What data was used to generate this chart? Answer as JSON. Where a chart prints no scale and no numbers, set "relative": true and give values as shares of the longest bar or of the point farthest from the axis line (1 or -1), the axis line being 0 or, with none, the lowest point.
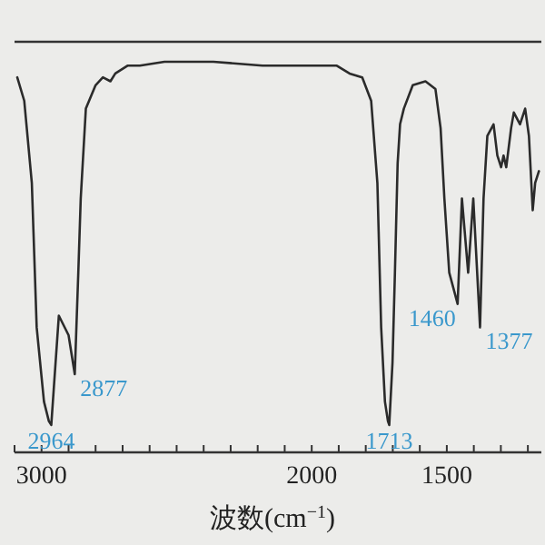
{
  "chart_data": {
    "type": "line",
    "relative": true,
    "xlabel": "波数(cm$^{−1}$)",
    "xlim": [
      3100,
      1150
    ],
    "xticks": [
      {
        "value": 3100,
        "label": null
      },
      3000,
      {
        "value": 2900,
        "label": null
      },
      {
        "value": 2800,
        "label": null
      },
      {
        "value": 2700,
        "label": null
      },
      {
        "value": 2600,
        "label": null
      },
      {
        "value": 2500,
        "label": null
      },
      {
        "value": 2400,
        "label": null
      },
      {
        "value": 2300,
        "label": null
      },
      {
        "value": 2200,
        "label": null
      },
      {
        "value": 2100,
        "label": null
      },
      2000,
      {
        "value": 1900,
        "label": null
      },
      {
        "value": 1800,
        "label": null
      },
      {
        "value": 1700,
        "label": null
      },
      {
        "value": 1600,
        "label": null
      },
      1500,
      {
        "value": 1400,
        "label": null
      },
      {
        "value": 1300,
        "label": null
      },
      {
        "value": 1200,
        "label": null
      }
    ],
    "series": [
      {
        "color": "#2b2b2b",
        "x": [
          3090,
          3064,
          3036,
          3018,
          2991,
          2973,
          2964,
          2955,
          2936,
          2900,
          2877,
          2864,
          2855,
          2836,
          2800,
          2773,
          2745,
          2727,
          2682,
          2636,
          2545,
          2364,
          2182,
          2000,
          1907,
          1860,
          1813,
          1780,
          1757,
          1743,
          1729,
          1718,
          1713,
          1701,
          1692,
          1682,
          1673,
          1659,
          1626,
          1579,
          1542,
          1523,
          1509,
          1491,
          1460,
          1444,
          1421,
          1402,
          1377,
          1364,
          1350,
          1327,
          1313,
          1299,
          1290,
          1280,
          1262,
          1252,
          1229,
          1210,
          1196,
          1182,
          1173,
          1159
        ],
        "values": [
          0.96,
          0.9,
          0.69,
          0.32,
          0.13,
          0.08,
          0.07,
          0.16,
          0.35,
          0.3,
          0.2,
          0.46,
          0.65,
          0.88,
          0.94,
          0.96,
          0.95,
          0.97,
          0.99,
          0.99,
          1,
          1,
          0.99,
          0.99,
          0.99,
          0.97,
          0.96,
          0.9,
          0.69,
          0.32,
          0.13,
          0.08,
          0.07,
          0.23,
          0.46,
          0.74,
          0.84,
          0.88,
          0.94,
          0.95,
          0.93,
          0.83,
          0.65,
          0.46,
          0.38,
          0.65,
          0.46,
          0.65,
          0.32,
          0.65,
          0.81,
          0.84,
          0.76,
          0.73,
          0.76,
          0.73,
          0.83,
          0.87,
          0.84,
          0.88,
          0.81,
          0.62,
          0.69,
          0.72
        ]
      }
    ],
    "annotations": [
      {
        "text": "2964",
        "x": 2964,
        "y": 0.07
      },
      {
        "text": "2877",
        "x": 2877,
        "y": 0.2
      },
      {
        "text": "1713",
        "x": 1713,
        "y": 0.07
      },
      {
        "text": "1460",
        "x": 1460,
        "y": 0.38
      },
      {
        "text": "1377",
        "x": 1377,
        "y": 0.32
      }
    ]
  }
}
